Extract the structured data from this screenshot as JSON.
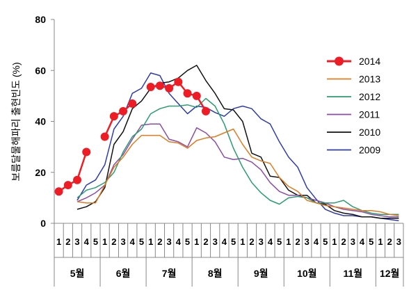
{
  "chart_data": {
    "type": "line",
    "ylabel": "보름달물해파리 출현빈도 (%)",
    "ylim": [
      0,
      80
    ],
    "yticks": [
      0,
      20,
      40,
      60,
      80
    ],
    "grid": false,
    "legend_position": "right",
    "week_labels": [
      "1",
      "2",
      "3",
      "4",
      "5",
      "1",
      "2",
      "3",
      "4",
      "5",
      "1",
      "2",
      "3",
      "4",
      "5",
      "1",
      "2",
      "3",
      "4",
      "5",
      "1",
      "2",
      "3",
      "4",
      "5",
      "1",
      "2",
      "3",
      "4",
      "5",
      "1",
      "2",
      "3",
      "4",
      "5",
      "1",
      "2",
      "3"
    ],
    "months": [
      {
        "label": "5월",
        "start": 0,
        "count": 5
      },
      {
        "label": "6월",
        "start": 5,
        "count": 5
      },
      {
        "label": "7월",
        "start": 10,
        "count": 5
      },
      {
        "label": "8월",
        "start": 15,
        "count": 5
      },
      {
        "label": "9월",
        "start": 20,
        "count": 5
      },
      {
        "label": "10월",
        "start": 25,
        "count": 5
      },
      {
        "label": "11월",
        "start": 30,
        "count": 5
      },
      {
        "label": "12월",
        "start": 35,
        "count": 3
      }
    ],
    "series": [
      {
        "name": "2014",
        "color": "#ee1c24",
        "marker": true,
        "values": [
          12.5,
          15,
          17,
          28,
          null,
          34,
          42,
          44,
          47,
          null,
          53.5,
          54,
          53,
          55.5,
          51,
          50,
          44,
          null,
          null,
          null,
          null,
          null,
          null,
          null,
          null,
          null,
          null,
          null,
          null,
          null,
          null,
          null,
          null,
          null,
          null,
          null,
          null,
          null
        ]
      },
      {
        "name": "2013",
        "color": "#e07b1e",
        "marker": false,
        "values": [
          null,
          null,
          8.5,
          8,
          8,
          15,
          22,
          26,
          31,
          34.5,
          34.5,
          34.5,
          32,
          31.5,
          29.5,
          32.5,
          33.5,
          34,
          35.5,
          37,
          31,
          26,
          24.5,
          23.5,
          18,
          14.5,
          12.5,
          9,
          8,
          7,
          6.5,
          6,
          5.5,
          5,
          5,
          4.5,
          3.5,
          3
        ]
      },
      {
        "name": "2012",
        "color": "#2a9d6f",
        "marker": false,
        "values": [
          null,
          null,
          10,
          13,
          14,
          16,
          20,
          28,
          34,
          37,
          43,
          45,
          46,
          46,
          46.5,
          45.5,
          49,
          46,
          39,
          29.5,
          22,
          16,
          12,
          9,
          7.5,
          10,
          10.5,
          10,
          8,
          8,
          8,
          9,
          6.5,
          5,
          4,
          3.5,
          3.5,
          3.5
        ]
      },
      {
        "name": "2011",
        "color": "#8b4ca8",
        "marker": false,
        "values": [
          null,
          null,
          8.5,
          10,
          12,
          15,
          23,
          27,
          33,
          38.5,
          39,
          39,
          33,
          32,
          30,
          37.5,
          35.5,
          32,
          26,
          25,
          25.5,
          24,
          21,
          16,
          12.5,
          11,
          11,
          10,
          9,
          8,
          6.5,
          5.5,
          5,
          4.5,
          3.5,
          3,
          2.5,
          2.5
        ]
      },
      {
        "name": "2010",
        "color": "#111111",
        "marker": false,
        "values": [
          null,
          null,
          5.5,
          6.5,
          8.5,
          14,
          31,
          36,
          45,
          48,
          53,
          55,
          55.5,
          57,
          60,
          62,
          56,
          51,
          45,
          44.5,
          40,
          27.5,
          26,
          18.5,
          18,
          13,
          11,
          11,
          8,
          7.5,
          5,
          4,
          3.5,
          2.5,
          2.5,
          2,
          2,
          2
        ]
      },
      {
        "name": "2009",
        "color": "#2e3bb0",
        "marker": false,
        "values": [
          null,
          null,
          9,
          15,
          17,
          23,
          37,
          42,
          51,
          53,
          59,
          58,
          51,
          47,
          43,
          46,
          45.5,
          43.5,
          42,
          45,
          46,
          45,
          41,
          39,
          32,
          26,
          22,
          14,
          9.5,
          5.5,
          4,
          3,
          3,
          2.5,
          2.5,
          2,
          1.5,
          1
        ]
      }
    ]
  }
}
